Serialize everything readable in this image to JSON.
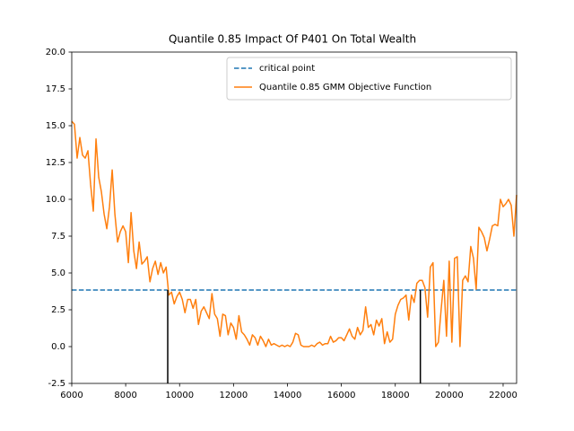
{
  "chart_data": {
    "type": "line",
    "title": "Quantile 0.85 Impact Of P401 On Total Wealth",
    "xlim": [
      6000,
      22500
    ],
    "ylim": [
      -2.5,
      20
    ],
    "xticks": [
      6000,
      8000,
      10000,
      12000,
      14000,
      16000,
      18000,
      20000,
      22000
    ],
    "yticks": [
      -2.5,
      {
        "value": 0,
        "label": "0.0"
      },
      2.5,
      {
        "value": 5,
        "label": "5.0"
      },
      7.5,
      {
        "value": 10,
        "label": "10.0"
      },
      12.5,
      {
        "value": 15,
        "label": "15.0"
      },
      17.5,
      {
        "value": 20,
        "label": "20.0"
      }
    ],
    "legend": "upper right",
    "critical": {
      "name": "critical point",
      "color": "#1f77b4",
      "value": 3.84,
      "crossings": [
        9560,
        18930
      ],
      "crossing_color": "#000000"
    },
    "series": [
      {
        "name": "Quantile 0.85 GMM Objective Function",
        "color": "#ff7f0e",
        "x": [
          6000,
          6100,
          6200,
          6300,
          6400,
          6500,
          6600,
          6700,
          6800,
          6900,
          7000,
          7100,
          7200,
          7300,
          7400,
          7500,
          7600,
          7700,
          7800,
          7900,
          8000,
          8100,
          8200,
          8300,
          8400,
          8500,
          8600,
          8700,
          8800,
          8900,
          9000,
          9100,
          9200,
          9300,
          9400,
          9500,
          9600,
          9700,
          9800,
          9900,
          10000,
          10100,
          10200,
          10300,
          10400,
          10500,
          10600,
          10700,
          10800,
          10900,
          11000,
          11100,
          11200,
          11300,
          11400,
          11500,
          11600,
          11700,
          11800,
          11900,
          12000,
          12100,
          12200,
          12300,
          12400,
          12500,
          12600,
          12700,
          12800,
          12900,
          13000,
          13100,
          13200,
          13300,
          13400,
          13500,
          13600,
          13700,
          13800,
          13900,
          14000,
          14100,
          14200,
          14300,
          14400,
          14500,
          14600,
          14700,
          14800,
          14900,
          15000,
          15100,
          15200,
          15300,
          15400,
          15500,
          15600,
          15700,
          15800,
          15900,
          16000,
          16100,
          16200,
          16300,
          16400,
          16500,
          16600,
          16700,
          16800,
          16900,
          17000,
          17100,
          17200,
          17300,
          17400,
          17500,
          17600,
          17700,
          17800,
          17900,
          18000,
          18100,
          18200,
          18300,
          18400,
          18500,
          18600,
          18700,
          18800,
          18900,
          19000,
          19100,
          19200,
          19300,
          19400,
          19500,
          19600,
          19700,
          19800,
          19900,
          20000,
          20100,
          20200,
          20300,
          20400,
          20500,
          20600,
          20700,
          20800,
          20900,
          21000,
          21100,
          21200,
          21300,
          21400,
          21500,
          21600,
          21700,
          21800,
          21900,
          22000,
          22100,
          22200,
          22300,
          22400,
          22500
        ],
        "values": [
          15.3,
          15.1,
          12.8,
          14.2,
          13.0,
          12.8,
          13.3,
          11.0,
          9.2,
          14.1,
          11.5,
          10.5,
          9.0,
          8.0,
          9.5,
          12.0,
          9.0,
          7.1,
          7.8,
          8.2,
          7.8,
          5.7,
          9.1,
          6.5,
          5.3,
          7.1,
          5.6,
          5.8,
          6.1,
          4.4,
          5.3,
          5.8,
          4.9,
          5.7,
          5.0,
          5.4,
          3.5,
          3.7,
          2.9,
          3.4,
          3.7,
          3.2,
          2.3,
          3.2,
          3.2,
          2.6,
          3.2,
          1.5,
          2.4,
          2.7,
          2.3,
          1.9,
          3.6,
          2.2,
          1.9,
          0.7,
          2.2,
          2.1,
          0.8,
          1.6,
          1.3,
          0.5,
          2.1,
          1.0,
          0.8,
          0.5,
          0.1,
          0.8,
          0.6,
          0.1,
          0.7,
          0.4,
          0.0,
          0.5,
          0.1,
          0.2,
          0.1,
          0.0,
          0.1,
          0.0,
          0.1,
          0.0,
          0.3,
          0.9,
          0.8,
          0.1,
          0.0,
          0.0,
          0.0,
          0.1,
          0.0,
          0.2,
          0.3,
          0.1,
          0.2,
          0.2,
          0.7,
          0.3,
          0.4,
          0.6,
          0.6,
          0.4,
          0.8,
          1.2,
          0.7,
          0.5,
          1.3,
          0.8,
          1.1,
          2.7,
          1.3,
          1.5,
          0.8,
          1.8,
          1.4,
          1.9,
          0.2,
          1.0,
          0.3,
          0.5,
          2.2,
          2.8,
          3.2,
          3.3,
          3.5,
          1.8,
          3.5,
          3.0,
          4.3,
          4.5,
          4.5,
          4.0,
          2.0,
          5.4,
          5.7,
          0.0,
          0.3,
          2.5,
          4.5,
          0.7,
          5.8,
          0.3,
          6.0,
          6.1,
          0.0,
          4.5,
          4.8,
          4.4,
          6.8,
          6.0,
          3.9,
          8.1,
          7.8,
          7.4,
          6.5,
          7.3,
          8.2,
          8.3,
          8.2,
          10.0,
          9.5,
          9.7,
          10.0,
          9.6,
          7.5,
          10.3
        ]
      }
    ]
  }
}
